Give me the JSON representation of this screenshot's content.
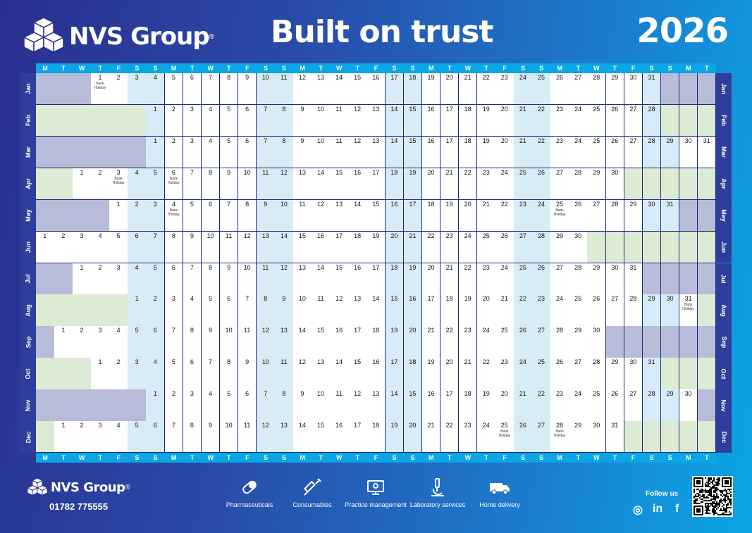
{
  "header": {
    "brand": "NVS Group",
    "headline": "Built on trust",
    "year": "2026"
  },
  "weekday_letters": [
    "M",
    "T",
    "W",
    "T",
    "F",
    "S",
    "S"
  ],
  "holiday_label": "Bank Holiday",
  "months": [
    {
      "label": "Jan",
      "start": 4,
      "days": 31,
      "holidays": [
        1
      ],
      "fill": "pre"
    },
    {
      "label": "Feb",
      "start": 7,
      "days": 28,
      "holidays": [],
      "fill": "post"
    },
    {
      "label": "Mar",
      "start": 7,
      "days": 31,
      "holidays": [],
      "fill": "pre"
    },
    {
      "label": "Apr",
      "start": 3,
      "days": 30,
      "holidays": [
        3,
        6
      ],
      "fill": "post"
    },
    {
      "label": "May",
      "start": 5,
      "days": 31,
      "holidays": [
        4,
        25
      ],
      "fill": "pre"
    },
    {
      "label": "Jun",
      "start": 1,
      "days": 30,
      "holidays": [],
      "fill": "post"
    },
    {
      "label": "Jul",
      "start": 3,
      "days": 31,
      "holidays": [],
      "fill": "pre"
    },
    {
      "label": "Aug",
      "start": 6,
      "days": 31,
      "holidays": [
        31
      ],
      "fill": "post"
    },
    {
      "label": "Sep",
      "start": 2,
      "days": 30,
      "holidays": [],
      "fill": "pre"
    },
    {
      "label": "Oct",
      "start": 4,
      "days": 31,
      "holidays": [],
      "fill": "post"
    },
    {
      "label": "Nov",
      "start": 7,
      "days": 30,
      "holidays": [],
      "fill": "pre"
    },
    {
      "label": "Dec",
      "start": 2,
      "days": 31,
      "holidays": [
        25,
        28
      ],
      "fill": "post"
    }
  ],
  "footer": {
    "brand": "NVS Group",
    "phone": "01782 775555",
    "services": [
      {
        "label": "Pharmaceuticals",
        "icon": "pill-icon"
      },
      {
        "label": "Consumables",
        "icon": "syringe-icon"
      },
      {
        "label": "Practice management",
        "icon": "monitor-icon"
      },
      {
        "label": "Laboratory services",
        "icon": "microscope-icon"
      },
      {
        "label": "Home delivery",
        "icon": "van-icon"
      }
    ],
    "follow_label": "Follow us",
    "social": [
      {
        "name": "instagram-icon",
        "glyph": "◎"
      },
      {
        "name": "linkedin-icon",
        "glyph": "in"
      },
      {
        "name": "facebook-icon",
        "glyph": "f"
      }
    ]
  },
  "colors": {
    "weekday_bar": "#0aa6e6",
    "weekend_cell": "#d8ecf8",
    "pre_fill": "#b8bcd8",
    "post_fill": "#dcebd4",
    "month_label_bg": "#2e3e9a"
  }
}
